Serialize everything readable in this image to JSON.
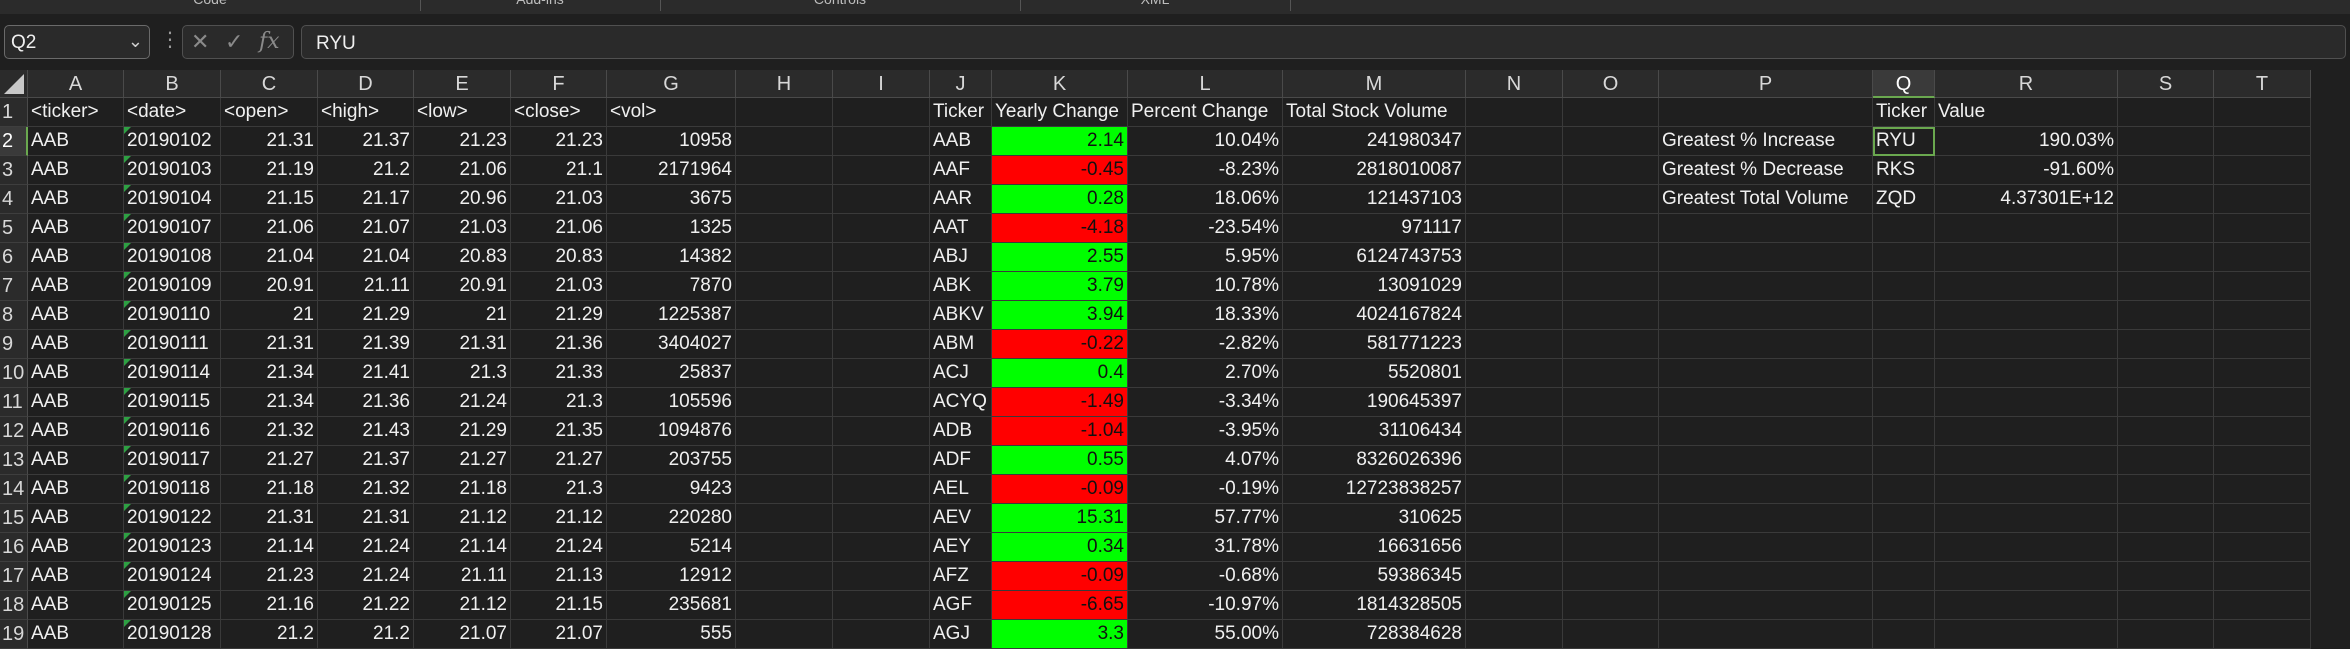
{
  "ribbon": {
    "groups": [
      "Code",
      "Add-ins",
      "Controls",
      "XML"
    ]
  },
  "formula_bar": {
    "name_box": "Q2",
    "formula": "RYU",
    "icons": [
      "cancel-icon",
      "enter-icon",
      "function-icon"
    ],
    "fx_label": "fx"
  },
  "columns": [
    "A",
    "B",
    "C",
    "D",
    "E",
    "F",
    "G",
    "H",
    "I",
    "J",
    "K",
    "L",
    "M",
    "N",
    "O",
    "P",
    "Q",
    "R",
    "S",
    "T"
  ],
  "selected_cell": "Q2",
  "colors": {
    "positive": "#00ff00",
    "negative": "#ff0000",
    "selection": "#6aa84f"
  },
  "rows": [
    {
      "num": "1",
      "A": "<ticker>",
      "B": "<date>",
      "C": "<open>",
      "D": "<high>",
      "E": "<low>",
      "F": "<close>",
      "G": "<vol>",
      "J": "Ticker",
      "K": "Yearly Change",
      "L": "Percent Change",
      "M": "Total Stock Volume",
      "Q": "Ticker",
      "R": "Value"
    },
    {
      "num": "2",
      "A": "AAB",
      "B": "20190102",
      "C": "21.31",
      "D": "21.37",
      "E": "21.23",
      "F": "21.23",
      "G": "10958",
      "J": "AAB",
      "K": "2.14",
      "L": "10.04%",
      "M": "241980347",
      "P": "Greatest % Increase",
      "Q": "RYU",
      "R": "190.03%"
    },
    {
      "num": "3",
      "A": "AAB",
      "B": "20190103",
      "C": "21.19",
      "D": "21.2",
      "E": "21.06",
      "F": "21.1",
      "G": "2171964",
      "J": "AAF",
      "K": "-0.45",
      "L": "-8.23%",
      "M": "2818010087",
      "P": "Greatest % Decrease",
      "Q": "RKS",
      "R": "-91.60%"
    },
    {
      "num": "4",
      "A": "AAB",
      "B": "20190104",
      "C": "21.15",
      "D": "21.17",
      "E": "20.96",
      "F": "21.03",
      "G": "3675",
      "J": "AAR",
      "K": "0.28",
      "L": "18.06%",
      "M": "121437103",
      "P": "Greatest Total Volume",
      "Q": "ZQD",
      "R": "4.37301E+12"
    },
    {
      "num": "5",
      "A": "AAB",
      "B": "20190107",
      "C": "21.06",
      "D": "21.07",
      "E": "21.03",
      "F": "21.06",
      "G": "1325",
      "J": "AAT",
      "K": "-4.18",
      "L": "-23.54%",
      "M": "971117"
    },
    {
      "num": "6",
      "A": "AAB",
      "B": "20190108",
      "C": "21.04",
      "D": "21.04",
      "E": "20.83",
      "F": "20.83",
      "G": "14382",
      "J": "ABJ",
      "K": "2.55",
      "L": "5.95%",
      "M": "6124743753"
    },
    {
      "num": "7",
      "A": "AAB",
      "B": "20190109",
      "C": "20.91",
      "D": "21.11",
      "E": "20.91",
      "F": "21.03",
      "G": "7870",
      "J": "ABK",
      "K": "3.79",
      "L": "10.78%",
      "M": "13091029"
    },
    {
      "num": "8",
      "A": "AAB",
      "B": "20190110",
      "C": "21",
      "D": "21.29",
      "E": "21",
      "F": "21.29",
      "G": "1225387",
      "J": "ABKV",
      "K": "3.94",
      "L": "18.33%",
      "M": "4024167824"
    },
    {
      "num": "9",
      "A": "AAB",
      "B": "20190111",
      "C": "21.31",
      "D": "21.39",
      "E": "21.31",
      "F": "21.36",
      "G": "3404027",
      "J": "ABM",
      "K": "-0.22",
      "L": "-2.82%",
      "M": "581771223"
    },
    {
      "num": "10",
      "A": "AAB",
      "B": "20190114",
      "C": "21.34",
      "D": "21.41",
      "E": "21.3",
      "F": "21.33",
      "G": "25837",
      "J": "ACJ",
      "K": "0.4",
      "L": "2.70%",
      "M": "5520801"
    },
    {
      "num": "11",
      "A": "AAB",
      "B": "20190115",
      "C": "21.34",
      "D": "21.36",
      "E": "21.24",
      "F": "21.3",
      "G": "105596",
      "J": "ACYQ",
      "K": "-1.49",
      "L": "-3.34%",
      "M": "190645397"
    },
    {
      "num": "12",
      "A": "AAB",
      "B": "20190116",
      "C": "21.32",
      "D": "21.43",
      "E": "21.29",
      "F": "21.35",
      "G": "1094876",
      "J": "ADB",
      "K": "-1.04",
      "L": "-3.95%",
      "M": "31106434"
    },
    {
      "num": "13",
      "A": "AAB",
      "B": "20190117",
      "C": "21.27",
      "D": "21.37",
      "E": "21.27",
      "F": "21.27",
      "G": "203755",
      "J": "ADF",
      "K": "0.55",
      "L": "4.07%",
      "M": "8326026396"
    },
    {
      "num": "14",
      "A": "AAB",
      "B": "20190118",
      "C": "21.18",
      "D": "21.32",
      "E": "21.18",
      "F": "21.3",
      "G": "9423",
      "J": "AEL",
      "K": "-0.09",
      "L": "-0.19%",
      "M": "12723838257"
    },
    {
      "num": "15",
      "A": "AAB",
      "B": "20190122",
      "C": "21.31",
      "D": "21.31",
      "E": "21.12",
      "F": "21.12",
      "G": "220280",
      "J": "AEV",
      "K": "15.31",
      "L": "57.77%",
      "M": "310625"
    },
    {
      "num": "16",
      "A": "AAB",
      "B": "20190123",
      "C": "21.14",
      "D": "21.24",
      "E": "21.14",
      "F": "21.24",
      "G": "5214",
      "J": "AEY",
      "K": "0.34",
      "L": "31.78%",
      "M": "16631656"
    },
    {
      "num": "17",
      "A": "AAB",
      "B": "20190124",
      "C": "21.23",
      "D": "21.24",
      "E": "21.11",
      "F": "21.13",
      "G": "12912",
      "J": "AFZ",
      "K": "-0.09",
      "L": "-0.68%",
      "M": "59386345"
    },
    {
      "num": "18",
      "A": "AAB",
      "B": "20190125",
      "C": "21.16",
      "D": "21.22",
      "E": "21.12",
      "F": "21.15",
      "G": "235681",
      "J": "AGF",
      "K": "-6.65",
      "L": "-10.97%",
      "M": "1814328505"
    },
    {
      "num": "19",
      "A": "AAB",
      "B": "20190128",
      "C": "21.2",
      "D": "21.2",
      "E": "21.07",
      "F": "21.07",
      "G": "555",
      "J": "AGJ",
      "K": "3.3",
      "L": "55.00%",
      "M": "728384628"
    }
  ]
}
